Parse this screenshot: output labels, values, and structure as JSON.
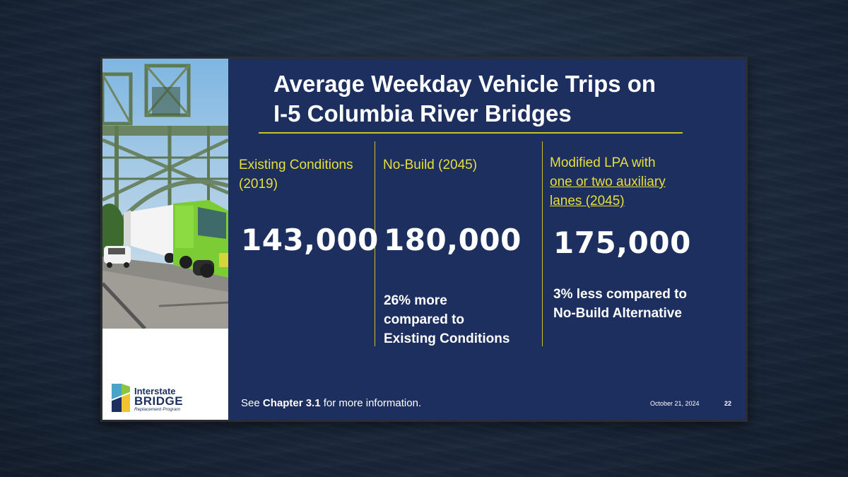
{
  "slide": {
    "title_line1": "Average Weekday Vehicle Trips on",
    "title_line2": "I-5 Columbia River Bridges",
    "columns": [
      {
        "heading_line1": "Existing Conditions",
        "heading_line2": "(2019)",
        "value": "143,000"
      },
      {
        "heading_line1": "No-Build (2045)",
        "value": "180,000",
        "note_line1": "26% more",
        "note_line2": "compared to",
        "note_line3": "Existing Conditions"
      },
      {
        "heading_line1": "Modified LPA with",
        "heading_line2": "one or two auxiliary",
        "heading_line3": "lanes (2045)",
        "value": "175,000",
        "note_line1": "3% less compared to",
        "note_line2": "No-Build Alternative"
      }
    ],
    "footer": {
      "prefix": "See ",
      "chapter": "Chapter 3.1",
      "suffix": " for more information."
    },
    "date": "October 21, 2024",
    "page_number": "22",
    "logo": {
      "line1": "Interstate",
      "line2": "BRIDGE",
      "line3": "Replacement Program"
    }
  },
  "colors": {
    "slide_background": "#1c2f5e",
    "accent_yellow": "#e8df38",
    "rule_yellow": "#c9c226",
    "text_white": "#ffffff"
  }
}
